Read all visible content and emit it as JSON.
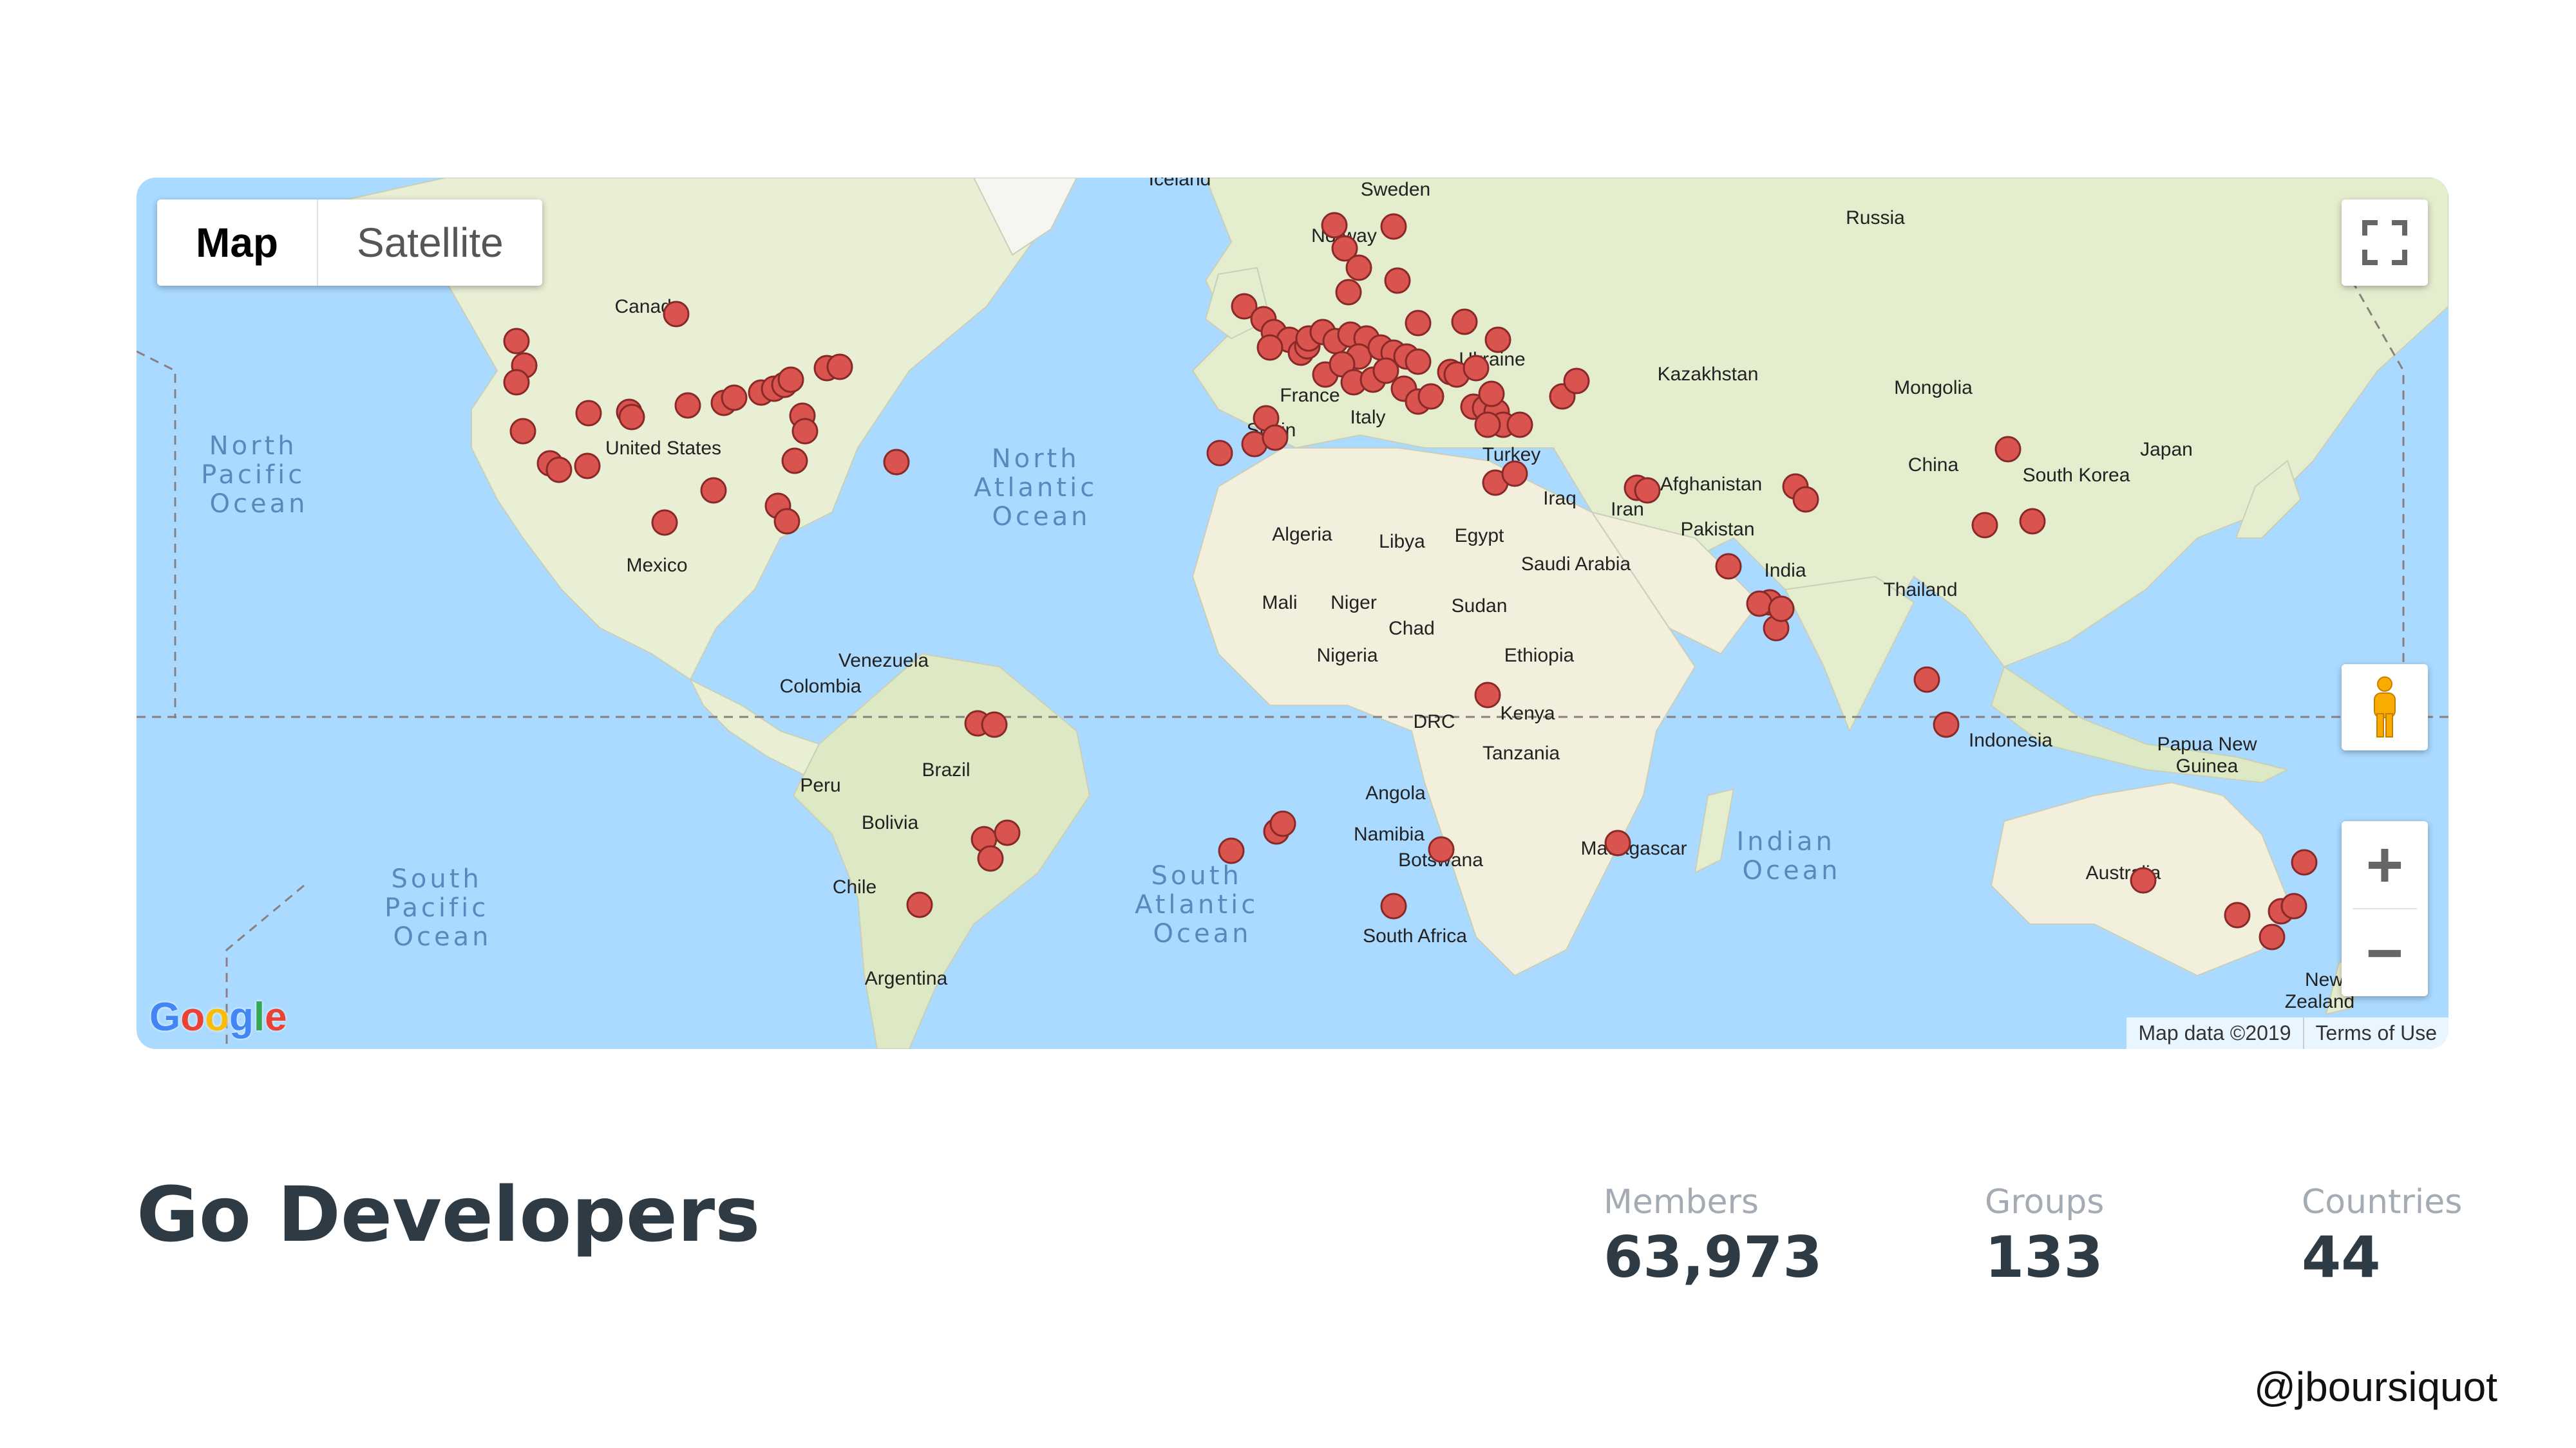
{
  "map": {
    "type_buttons": [
      "Map",
      "Satellite"
    ],
    "active_type": "Map",
    "attribution": {
      "data": "Map data ©2019",
      "terms": "Terms of Use"
    },
    "logo": "Google",
    "zoom_in": "+",
    "zoom_out": "−",
    "marker_color": "#d9534f",
    "land_color": "#eef2dc",
    "water_color": "#aadaff",
    "country_labels": {
      "iceland": "Iceland",
      "sweden": "Sweden",
      "norway": "Norway",
      "russia": "Russia",
      "canada": "Canada",
      "united_states": "United States",
      "mexico": "Mexico",
      "ukraine": "Ukraine",
      "kazakhstan": "Kazakhstan",
      "mongolia": "Mongolia",
      "france": "France",
      "spain": "Spain",
      "italy": "Italy",
      "turkey": "Turkey",
      "afghanistan": "Afghanistan",
      "iraq": "Iraq",
      "iran": "Iran",
      "pakistan": "Pakistan",
      "china": "China",
      "japan": "Japan",
      "south_korea": "South Korea",
      "algeria": "Algeria",
      "libya": "Libya",
      "egypt": "Egypt",
      "saudi_arabia": "Saudi Arabia",
      "india": "India",
      "thailand": "Thailand",
      "mali": "Mali",
      "niger": "Niger",
      "chad": "Chad",
      "sudan": "Sudan",
      "nigeria": "Nigeria",
      "ethiopia": "Ethiopia",
      "venezuela": "Venezuela",
      "colombia": "Colombia",
      "kenya": "Kenya",
      "drc": "DRC",
      "indonesia": "Indonesia",
      "papua_new_guinea_1": "Papua New",
      "papua_new_guinea_2": "Guinea",
      "tanzania": "Tanzania",
      "brazil": "Brazil",
      "peru": "Peru",
      "bolivia": "Bolivia",
      "angola": "Angola",
      "namibia": "Namibia",
      "botswana": "Botswana",
      "madagascar": "Madagascar",
      "australia": "Australia",
      "chile": "Chile",
      "south_africa": "South Africa",
      "argentina": "Argentina",
      "new_zealand_1": "New",
      "new_zealand_2": "Zealand"
    },
    "ocean_labels": {
      "north_pacific": [
        "North",
        "Pacific",
        "Ocean"
      ],
      "north_atlantic": [
        "North",
        "Atlantic",
        "Ocean"
      ],
      "south_pacific": [
        "South",
        "Pacific",
        "Ocean"
      ],
      "south_atlantic": [
        "South",
        "Atlantic",
        "Ocean"
      ],
      "indian": [
        "Indian",
        "Ocean"
      ]
    }
  },
  "group": {
    "title": "Go Developers",
    "stats": [
      {
        "label": "Members",
        "value": "63,973"
      },
      {
        "label": "Groups",
        "value": "133"
      },
      {
        "label": "Countries",
        "value": "44"
      }
    ]
  },
  "footer": {
    "handle": "@jboursiquot"
  }
}
